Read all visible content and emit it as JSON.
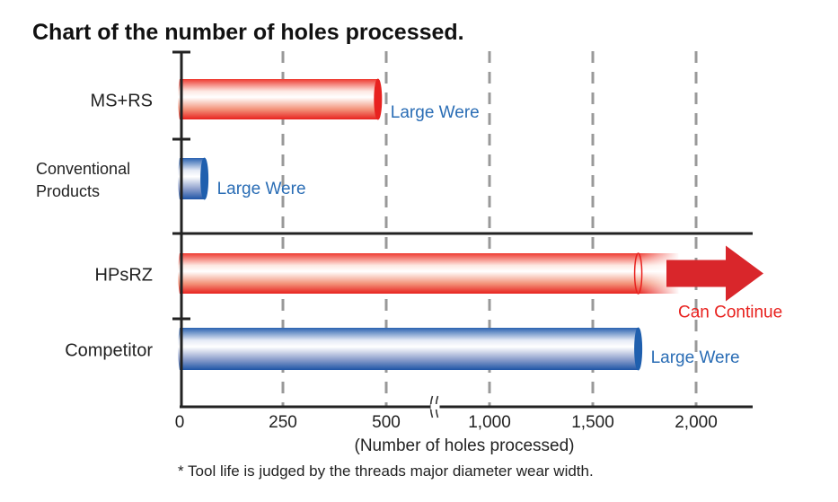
{
  "chart_data": {
    "type": "bar",
    "orientation": "horizontal",
    "title": "Chart of the number of holes processed.",
    "xlabel": "(Number of holes processed)",
    "footnote": "* Tool life is judged by the threads major diameter wear width.",
    "x_ticks": [
      0,
      250,
      500,
      1000,
      1500,
      2000
    ],
    "x_tick_labels": [
      "0",
      "250",
      "500",
      "1,000",
      "1,500",
      "2,000"
    ],
    "axis_break_between": [
      500,
      1000
    ],
    "xlim": [
      0,
      2250
    ],
    "grid": "vertical dashed",
    "groups": [
      {
        "bars": [
          {
            "category": "MS+RS",
            "value": 480,
            "color": "#e8221f",
            "annotation": "Large Were",
            "annotation_color": "#2a6db5"
          },
          {
            "category_lines": [
              "Conventional",
              "Products"
            ],
            "value": 60,
            "color": "#1f5fae",
            "annotation": "Large Were",
            "annotation_color": "#2a6db5"
          }
        ]
      },
      {
        "bars": [
          {
            "category": "HPsRZ",
            "value": 1720,
            "color": "#e8221f",
            "continues": true,
            "annotation": "Can Continue",
            "annotation_color": "#e8221f"
          },
          {
            "category": "Competitor",
            "value": 1720,
            "color": "#1f5fae",
            "annotation": "Large Were",
            "annotation_color": "#2a6db5"
          }
        ]
      }
    ]
  }
}
